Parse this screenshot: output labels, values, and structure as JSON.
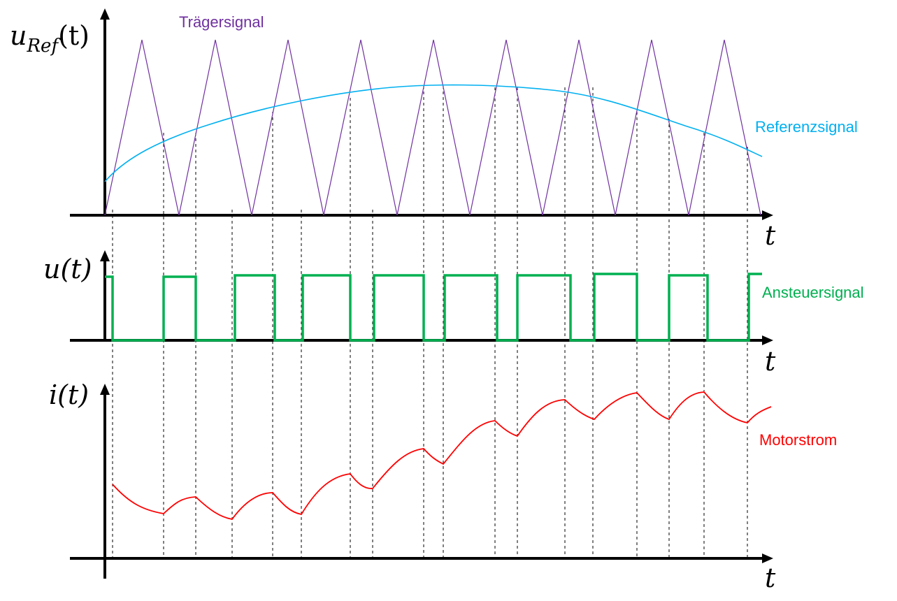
{
  "labels": {
    "carrier": "Trägersignal",
    "reference": "Referenzsignal",
    "drive": "Ansteuersignal",
    "current": "Motorstrom"
  },
  "axes": {
    "ref_var": "u",
    "ref_sub": "Ref",
    "ref_arg": "(t)",
    "u_label": "u(t)",
    "i_label": "i(t)",
    "time_1": "t",
    "time_2": "t",
    "time_3": "t"
  },
  "colors": {
    "carrier": "#7030a0",
    "reference": "#00b0f0",
    "drive": "#00b050",
    "current": "#ff0000",
    "axis": "#000000"
  }
}
